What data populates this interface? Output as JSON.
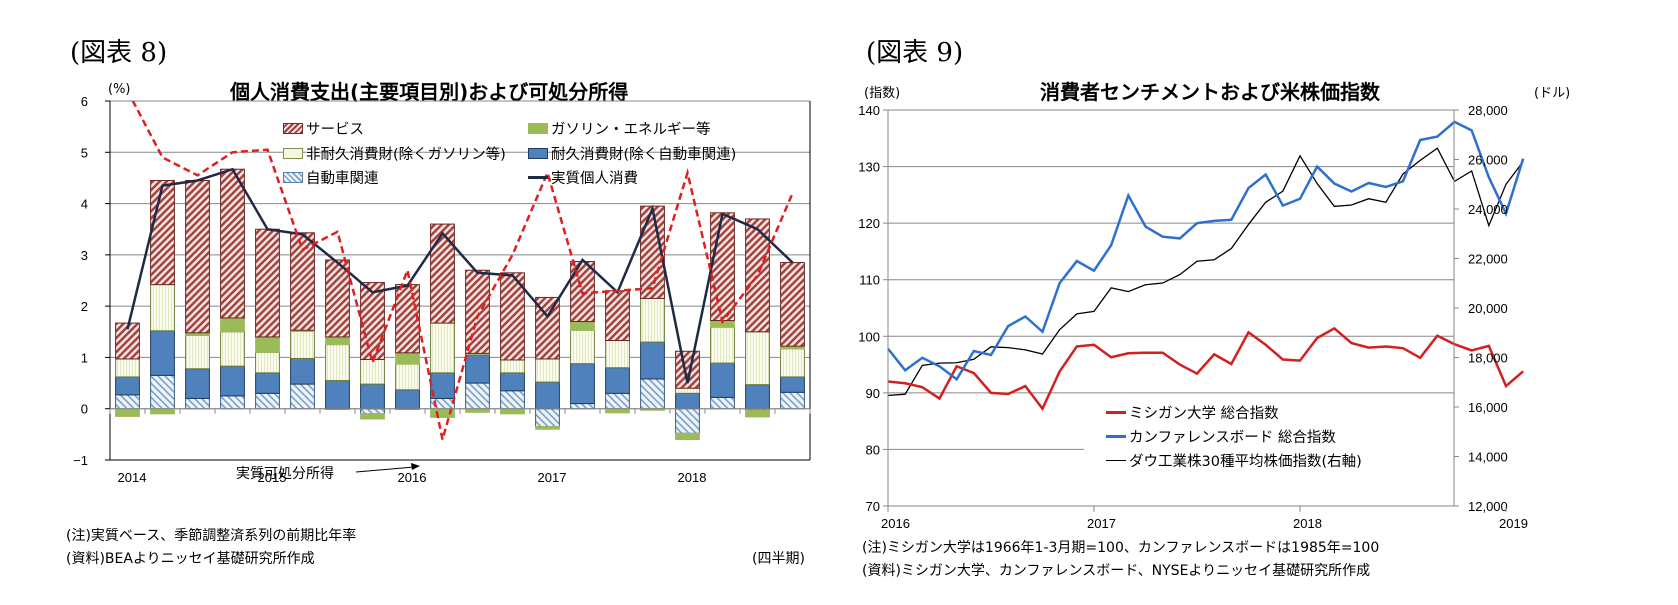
{
  "figure8": {
    "label": "(図表 8)",
    "title": "個人消費支出(主要項目別)および可処分所得",
    "y_unit": "(%)",
    "x_unit": "(四半期)",
    "annotation": "実質可処分所得",
    "note": "(注)実質ベース、季節調整済系列の前期比年率",
    "source": "(資料)BEAよりニッセイ基礎研究所作成",
    "colors": {
      "services": "#a0403a",
      "gasoline": "#9bbb59",
      "nondurables": "#f2f5e0",
      "durables": "#4f81bd",
      "auto": "#dbe8f4",
      "pce": "#1f2a44",
      "disposable_income": "#e02020"
    }
  },
  "figure9": {
    "label": "(図表 9)",
    "title": "消費者センチメントおよび米株価指数",
    "y_unit_left": "(指数)",
    "y_unit_right": "(ドル)",
    "note": "(注)ミシガン大学は1966年1-3月期=100、カンファレンスボードは1985年=100",
    "source": "(資料)ミシガン大学、カンファレンスボード、NYSEよりニッセイ基礎研究所作成",
    "colors": {
      "michigan": "#d42020",
      "conference_board": "#2e6fd0",
      "dow": "#000000"
    }
  },
  "chart_data": [
    {
      "type": "bar",
      "stacked": true,
      "title": "個人消費支出(主要項目別)および可処分所得",
      "xlabel": "(四半期)",
      "ylabel": "(%)",
      "ylim": [
        -1,
        6
      ],
      "yticks": [
        -1,
        0,
        1,
        2,
        3,
        4,
        5,
        6
      ],
      "xtick_labels": [
        "2014",
        "2015",
        "2016",
        "2017",
        "2018"
      ],
      "categories": [
        "2014Q1",
        "2014Q2",
        "2014Q3",
        "2014Q4",
        "2015Q1",
        "2015Q2",
        "2015Q3",
        "2015Q4",
        "2016Q1",
        "2016Q2",
        "2016Q3",
        "2016Q4",
        "2017Q1",
        "2017Q2",
        "2017Q3",
        "2017Q4",
        "2018Q1",
        "2018Q2",
        "2018Q3",
        "2018Q4"
      ],
      "grid": true,
      "legend_position": "top-right",
      "series": [
        {
          "name": "自動車関連",
          "kind": "bar",
          "values": [
            0.27,
            0.65,
            0.2,
            0.25,
            0.3,
            0.48,
            0.0,
            -0.1,
            0.0,
            0.2,
            0.5,
            0.35,
            -0.35,
            0.1,
            0.3,
            0.58,
            -0.48,
            0.22,
            -0.03,
            0.32
          ]
        },
        {
          "name": "耐久消費財(除く自動車関連)",
          "kind": "bar",
          "values": [
            0.35,
            0.87,
            0.58,
            0.58,
            0.4,
            0.5,
            0.55,
            0.48,
            0.37,
            0.5,
            0.55,
            0.35,
            0.52,
            0.78,
            0.5,
            0.72,
            0.3,
            0.67,
            0.47,
            0.3
          ]
        },
        {
          "name": "非耐久消費財(除くガソリン等)",
          "kind": "bar",
          "values": [
            0.35,
            0.9,
            0.65,
            0.67,
            0.4,
            0.53,
            0.7,
            0.48,
            0.5,
            0.97,
            0.03,
            0.25,
            0.45,
            0.65,
            0.53,
            0.85,
            0.1,
            0.7,
            1.03,
            0.55
          ]
        },
        {
          "name": "ガソリン・エネルギー等",
          "kind": "bar",
          "values": [
            -0.15,
            -0.1,
            0.05,
            0.27,
            0.3,
            0.02,
            0.15,
            -0.1,
            0.22,
            -0.17,
            -0.07,
            -0.1,
            -0.05,
            0.17,
            -0.08,
            -0.03,
            -0.12,
            0.13,
            -0.13,
            0.05
          ]
        },
        {
          "name": "サービス",
          "kind": "bar",
          "values": [
            0.7,
            2.03,
            2.97,
            2.9,
            2.1,
            1.9,
            1.5,
            1.5,
            1.33,
            1.93,
            1.62,
            1.7,
            1.2,
            1.17,
            0.97,
            1.8,
            0.72,
            2.1,
            2.2,
            1.63
          ]
        },
        {
          "name": "実質個人消費",
          "kind": "line",
          "values": [
            1.55,
            4.35,
            4.45,
            4.67,
            3.5,
            3.4,
            2.85,
            2.27,
            2.4,
            3.42,
            2.65,
            2.6,
            1.8,
            2.9,
            2.27,
            3.9,
            0.5,
            3.8,
            3.5,
            2.85
          ]
        },
        {
          "name": "実質可処分所得",
          "kind": "dashed-line",
          "values": [
            6.2,
            4.9,
            4.55,
            5.0,
            5.05,
            3.1,
            3.45,
            0.9,
            2.7,
            -0.6,
            1.8,
            3.0,
            4.6,
            2.25,
            2.3,
            2.35,
            4.6,
            1.7,
            2.6,
            4.2
          ]
        }
      ]
    },
    {
      "type": "line",
      "title": "消費者センチメントおよび米株価指数",
      "ylabel": "(指数)",
      "ylabel_right": "(ドル)",
      "ylim": [
        70,
        140
      ],
      "ylim_right": [
        12000,
        28000
      ],
      "yticks": [
        70,
        80,
        90,
        100,
        110,
        120,
        130,
        140
      ],
      "yticks_right": [
        "12,000",
        "14,000",
        "16,000",
        "18,000",
        "20,000",
        "22,000",
        "24,000",
        "26,000",
        "28,000"
      ],
      "xtick_labels": [
        "2016",
        "2017",
        "2018",
        "2019"
      ],
      "x_start": "2016-01",
      "x_freq": "monthly",
      "grid": true,
      "legend_position": "bottom-center",
      "series": [
        {
          "name": "ミシガン大学 総合指数",
          "axis": "left",
          "values": [
            92.0,
            91.7,
            91.0,
            89.0,
            94.7,
            93.5,
            90.0,
            89.8,
            91.2,
            87.2,
            93.8,
            98.2,
            98.5,
            96.3,
            97.0,
            97.1,
            97.1,
            95.0,
            93.4,
            96.8,
            95.1,
            100.7,
            98.5,
            95.9,
            95.7,
            99.7,
            101.4,
            98.8,
            98.0,
            98.2,
            97.9,
            96.2,
            100.1,
            98.6,
            97.5,
            98.3,
            91.2,
            93.8
          ]
        },
        {
          "name": "カンファレンスボード 総合指数",
          "axis": "left",
          "values": [
            97.8,
            94.0,
            96.2,
            94.7,
            92.4,
            97.4,
            96.7,
            101.8,
            103.5,
            100.8,
            109.4,
            113.3,
            111.6,
            116.1,
            124.9,
            119.4,
            117.6,
            117.3,
            120.0,
            120.4,
            120.6,
            126.2,
            128.6,
            123.1,
            124.3,
            130.0,
            127.0,
            125.6,
            127.1,
            126.4,
            127.4,
            134.7,
            135.3,
            137.9,
            136.4,
            128.1,
            121.7,
            131.4
          ]
        },
        {
          "name": "ダウ工業株30種平均株価指数(右軸)",
          "axis": "right",
          "values": [
            16466,
            16517,
            17685,
            17774,
            17787,
            17930,
            18432,
            18400,
            18308,
            18142,
            19124,
            19763,
            19864,
            20812,
            20663,
            20940,
            21009,
            21350,
            21891,
            21948,
            22405,
            23377,
            24272,
            24719,
            26149,
            25029,
            24103,
            24163,
            24415,
            24271,
            25415,
            25965,
            26458,
            25116,
            25538,
            23327,
            24999,
            25916
          ]
        }
      ]
    }
  ]
}
